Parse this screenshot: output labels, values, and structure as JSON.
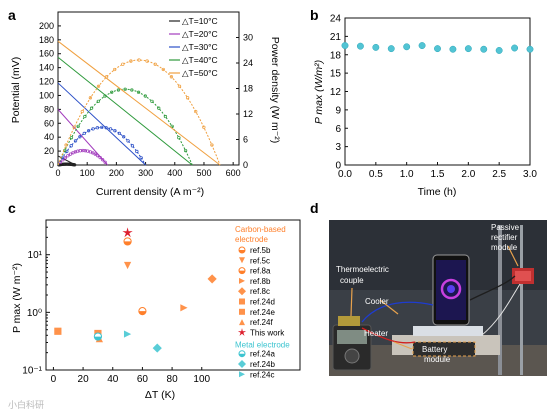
{
  "watermark": "小白科研",
  "chart_data": [
    {
      "panel": "a",
      "type": "line",
      "xlabel": "Current density (A m⁻²)",
      "ylabel": "Potential (mV)",
      "y2label": "Power density (W m⁻²)",
      "xlim": [
        0,
        620
      ],
      "ylim": [
        0,
        220
      ],
      "y2lim": [
        0,
        36
      ],
      "xticks": [
        "0",
        "100",
        "200",
        "300",
        "400",
        "500",
        "600"
      ],
      "yticks": [
        "0",
        "20",
        "40",
        "60",
        "80",
        "100",
        "120",
        "140",
        "160",
        "180",
        "200"
      ],
      "y2ticks": [
        "0",
        "6",
        "12",
        "18",
        "24",
        "30"
      ],
      "legend_position": "top-right",
      "series": [
        {
          "name": "△T=10°C",
          "color": "#222222",
          "voc": 13,
          "isc": 60
        },
        {
          "name": "△T=20°C",
          "color": "#a23bbd",
          "voc": 80,
          "isc": 170
        },
        {
          "name": "△T=30°C",
          "color": "#2b4fc7",
          "voc": 118,
          "isc": 300
        },
        {
          "name": "△T=40°C",
          "color": "#2e9a3c",
          "voc": 155,
          "isc": 460
        },
        {
          "name": "△T=50°C",
          "color": "#f0a040",
          "voc": 178,
          "isc": 555
        }
      ]
    },
    {
      "panel": "b",
      "type": "scatter",
      "xlabel": "Time (h)",
      "ylabel": "P max (W/m²)",
      "xlim": [
        0,
        3.0
      ],
      "ylim": [
        0,
        24
      ],
      "xticks": [
        "0.0",
        "0.5",
        "1.0",
        "1.5",
        "2.0",
        "2.5",
        "3.0"
      ],
      "yticks": [
        "0",
        "3",
        "6",
        "9",
        "12",
        "15",
        "18",
        "21",
        "24"
      ],
      "x": [
        0.0,
        0.25,
        0.5,
        0.75,
        1.0,
        1.25,
        1.5,
        1.75,
        2.0,
        2.25,
        2.5,
        2.75,
        3.0
      ],
      "y": [
        19.5,
        19.4,
        19.2,
        19.0,
        19.3,
        19.5,
        19.0,
        18.9,
        19.0,
        18.9,
        18.7,
        19.1,
        18.9
      ],
      "color": "#52c4d4"
    },
    {
      "panel": "c",
      "type": "scatter",
      "xlabel": "ΔT (K)",
      "ylabel": "P max  (W m⁻²)",
      "yscale": "log",
      "xlim": [
        -5,
        115
      ],
      "ylim": [
        0.1,
        40
      ],
      "xticks": [
        "0",
        "20",
        "40",
        "60",
        "80",
        "100"
      ],
      "yticks": [
        "10⁻¹",
        "10⁰",
        "10¹"
      ],
      "legend_groups": [
        "Carbon-based electrode",
        "Metal electrode"
      ],
      "series": [
        {
          "name": "ref.5b",
          "x": [
            50
          ],
          "y": [
            17
          ],
          "color": "#ff7f2a",
          "marker": "circle-half"
        },
        {
          "name": "ref.5c",
          "x": [
            50
          ],
          "y": [
            6.5
          ],
          "color": "#ff7f2a",
          "marker": "tri-down"
        },
        {
          "name": "ref.8a",
          "x": [
            60
          ],
          "y": [
            1.05
          ],
          "color": "#ff7f2a",
          "marker": "circle-half"
        },
        {
          "name": "ref.8b",
          "x": [
            88
          ],
          "y": [
            1.2
          ],
          "color": "#ff7f2a",
          "marker": "tri-right"
        },
        {
          "name": "ref.8c",
          "x": [
            107
          ],
          "y": [
            3.8
          ],
          "color": "#ff7f2a",
          "marker": "diamond"
        },
        {
          "name": "ref.24d",
          "x": [
            3
          ],
          "y": [
            0.47
          ],
          "color": "#ff7f2a",
          "marker": "square"
        },
        {
          "name": "ref.24e",
          "x": [
            30
          ],
          "y": [
            0.43
          ],
          "color": "#ff7f2a",
          "marker": "square"
        },
        {
          "name": "ref.24f",
          "x": [
            31
          ],
          "y": [
            0.35
          ],
          "color": "#ff7f2a",
          "marker": "tri-up"
        },
        {
          "name": "This work",
          "x": [
            50
          ],
          "y": [
            24
          ],
          "color": "#dd1e2d",
          "marker": "star"
        },
        {
          "name": "ref.24a",
          "x": [
            30
          ],
          "y": [
            0.38
          ],
          "color": "#3cc4d0",
          "marker": "circle-half"
        },
        {
          "name": "ref.24b",
          "x": [
            70
          ],
          "y": [
            0.24
          ],
          "color": "#3cc4d0",
          "marker": "diamond"
        },
        {
          "name": "ref.24c",
          "x": [
            50
          ],
          "y": [
            0.42
          ],
          "color": "#3cc4d0",
          "marker": "tri-right"
        }
      ]
    }
  ],
  "panels": {
    "a": {
      "label": "a"
    },
    "b": {
      "label": "b"
    },
    "c": {
      "label": "c"
    },
    "d": {
      "label": "d",
      "annotations": {
        "thermoelectric": [
          "Thermoelectric",
          "couple"
        ],
        "cooler": "Cooler",
        "heater": "Heater",
        "battery": "Battery",
        "module": "module",
        "passive": [
          "Passive",
          "rectifier",
          "module"
        ]
      }
    }
  }
}
